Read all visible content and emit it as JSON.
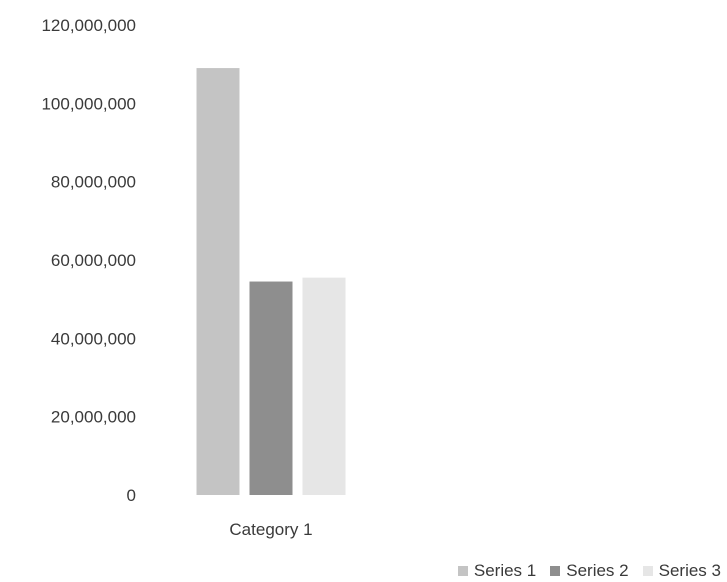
{
  "chart_data": {
    "type": "bar",
    "categories": [
      "Category 1"
    ],
    "series": [
      {
        "name": "Series 1",
        "values": [
          109000000
        ],
        "color": "#c4c4c4"
      },
      {
        "name": "Series 2",
        "values": [
          54500000
        ],
        "color": "#8e8e8e"
      },
      {
        "name": "Series 3",
        "values": [
          55500000
        ],
        "color": "#e6e6e6"
      }
    ],
    "title": "",
    "xlabel": "",
    "ylabel": "",
    "ylim": [
      0,
      120000000
    ],
    "yticks": [
      "0",
      "20,000,000",
      "40,000,000",
      "60,000,000",
      "80,000,000",
      "100,000,000",
      "120,000,000"
    ],
    "grid": false,
    "legend": "bottom-right"
  }
}
